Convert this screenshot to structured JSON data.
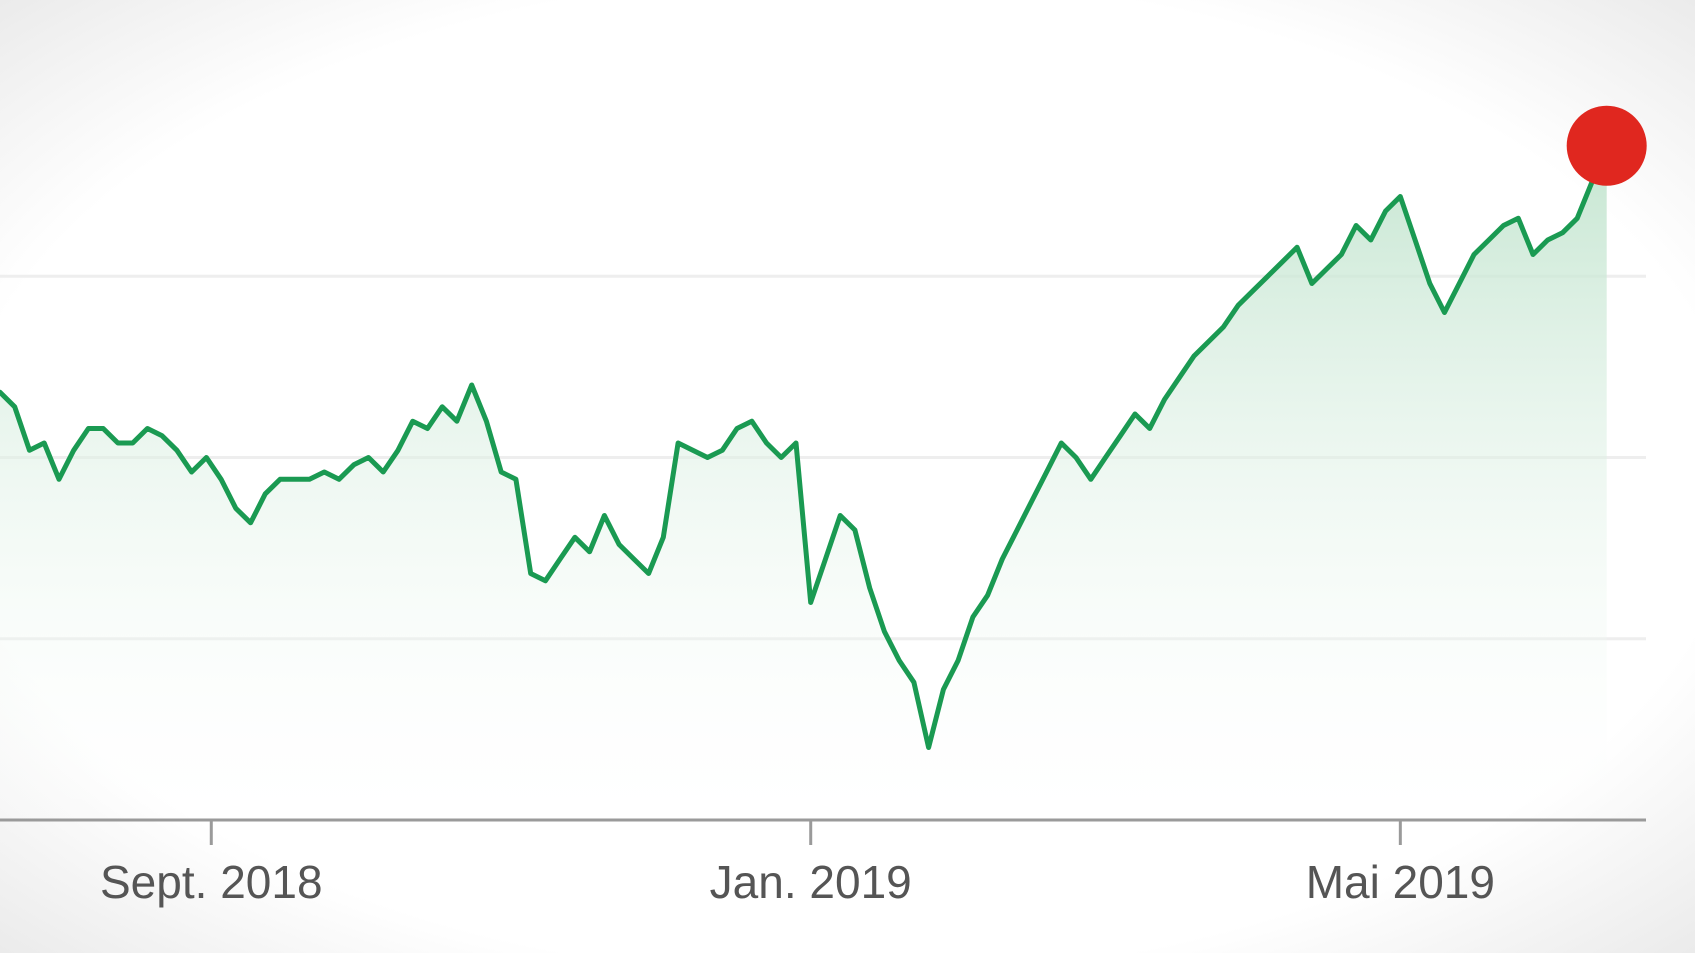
{
  "chart_data": {
    "type": "area",
    "title": "",
    "xlabel": "",
    "ylabel": "",
    "x_tick_labels": [
      {
        "label": "Sept. 2018",
        "date": "2018-09-01"
      },
      {
        "label": "Jan. 2019",
        "date": "2019-01-01"
      },
      {
        "label": "Mai 2019",
        "date": "2019-05-01"
      }
    ],
    "xlim": [
      "2018-07-20",
      "2019-06-20"
    ],
    "ylim": [
      0,
      100
    ],
    "y_gridlines": [
      25,
      50,
      75
    ],
    "grid": "horizontal",
    "legend": "none",
    "series": [
      {
        "points": [
          [
            "2018-07-20",
            59
          ],
          [
            "2018-07-23",
            57
          ],
          [
            "2018-07-26",
            51
          ],
          [
            "2018-07-29",
            52
          ],
          [
            "2018-08-01",
            47
          ],
          [
            "2018-08-04",
            51
          ],
          [
            "2018-08-07",
            54
          ],
          [
            "2018-08-10",
            54
          ],
          [
            "2018-08-13",
            52
          ],
          [
            "2018-08-16",
            52
          ],
          [
            "2018-08-19",
            54
          ],
          [
            "2018-08-22",
            53
          ],
          [
            "2018-08-25",
            51
          ],
          [
            "2018-08-28",
            48
          ],
          [
            "2018-08-31",
            50
          ],
          [
            "2018-09-03",
            47
          ],
          [
            "2018-09-06",
            43
          ],
          [
            "2018-09-09",
            41
          ],
          [
            "2018-09-12",
            45
          ],
          [
            "2018-09-15",
            47
          ],
          [
            "2018-09-18",
            47
          ],
          [
            "2018-09-21",
            47
          ],
          [
            "2018-09-24",
            48
          ],
          [
            "2018-09-27",
            47
          ],
          [
            "2018-09-30",
            49
          ],
          [
            "2018-10-03",
            50
          ],
          [
            "2018-10-06",
            48
          ],
          [
            "2018-10-09",
            51
          ],
          [
            "2018-10-12",
            55
          ],
          [
            "2018-10-15",
            54
          ],
          [
            "2018-10-18",
            57
          ],
          [
            "2018-10-21",
            55
          ],
          [
            "2018-10-24",
            60
          ],
          [
            "2018-10-27",
            55
          ],
          [
            "2018-10-30",
            48
          ],
          [
            "2018-11-02",
            47
          ],
          [
            "2018-11-05",
            34
          ],
          [
            "2018-11-08",
            33
          ],
          [
            "2018-11-11",
            36
          ],
          [
            "2018-11-14",
            39
          ],
          [
            "2018-11-17",
            37
          ],
          [
            "2018-11-20",
            42
          ],
          [
            "2018-11-23",
            38
          ],
          [
            "2018-11-26",
            36
          ],
          [
            "2018-11-29",
            34
          ],
          [
            "2018-12-02",
            39
          ],
          [
            "2018-12-05",
            52
          ],
          [
            "2018-12-08",
            51
          ],
          [
            "2018-12-11",
            50
          ],
          [
            "2018-12-14",
            51
          ],
          [
            "2018-12-17",
            54
          ],
          [
            "2018-12-20",
            55
          ],
          [
            "2018-12-23",
            52
          ],
          [
            "2018-12-26",
            50
          ],
          [
            "2018-12-29",
            52
          ],
          [
            "2019-01-01",
            30
          ],
          [
            "2019-01-04",
            36
          ],
          [
            "2019-01-07",
            42
          ],
          [
            "2019-01-10",
            40
          ],
          [
            "2019-01-13",
            32
          ],
          [
            "2019-01-16",
            26
          ],
          [
            "2019-01-19",
            22
          ],
          [
            "2019-01-22",
            19
          ],
          [
            "2019-01-25",
            10
          ],
          [
            "2019-01-28",
            18
          ],
          [
            "2019-01-31",
            22
          ],
          [
            "2019-02-03",
            28
          ],
          [
            "2019-02-06",
            31
          ],
          [
            "2019-02-09",
            36
          ],
          [
            "2019-02-12",
            40
          ],
          [
            "2019-02-15",
            44
          ],
          [
            "2019-02-18",
            48
          ],
          [
            "2019-02-21",
            52
          ],
          [
            "2019-02-24",
            50
          ],
          [
            "2019-02-27",
            47
          ],
          [
            "2019-03-02",
            50
          ],
          [
            "2019-03-05",
            53
          ],
          [
            "2019-03-08",
            56
          ],
          [
            "2019-03-11",
            54
          ],
          [
            "2019-03-14",
            58
          ],
          [
            "2019-03-17",
            61
          ],
          [
            "2019-03-20",
            64
          ],
          [
            "2019-03-23",
            66
          ],
          [
            "2019-03-26",
            68
          ],
          [
            "2019-03-29",
            71
          ],
          [
            "2019-04-01",
            73
          ],
          [
            "2019-04-04",
            75
          ],
          [
            "2019-04-07",
            77
          ],
          [
            "2019-04-10",
            79
          ],
          [
            "2019-04-13",
            74
          ],
          [
            "2019-04-16",
            76
          ],
          [
            "2019-04-19",
            78
          ],
          [
            "2019-04-22",
            82
          ],
          [
            "2019-04-25",
            80
          ],
          [
            "2019-04-28",
            84
          ],
          [
            "2019-05-01",
            86
          ],
          [
            "2019-05-04",
            80
          ],
          [
            "2019-05-07",
            74
          ],
          [
            "2019-05-10",
            70
          ],
          [
            "2019-05-13",
            74
          ],
          [
            "2019-05-16",
            78
          ],
          [
            "2019-05-19",
            80
          ],
          [
            "2019-05-22",
            82
          ],
          [
            "2019-05-25",
            83
          ],
          [
            "2019-05-28",
            78
          ],
          [
            "2019-05-31",
            80
          ],
          [
            "2019-06-03",
            81
          ],
          [
            "2019-06-06",
            83
          ],
          [
            "2019-06-09",
            88
          ],
          [
            "2019-06-12",
            93
          ]
        ]
      }
    ],
    "highlight_last_point": true,
    "colors": {
      "line": "#1a9a52",
      "area_top": "#bfe3cc",
      "area_bottom": "#ffffff",
      "gridline": "#eeeeee",
      "axis": "#9a9a9a",
      "tick_text": "#555555",
      "marker": "#e0271f"
    }
  }
}
